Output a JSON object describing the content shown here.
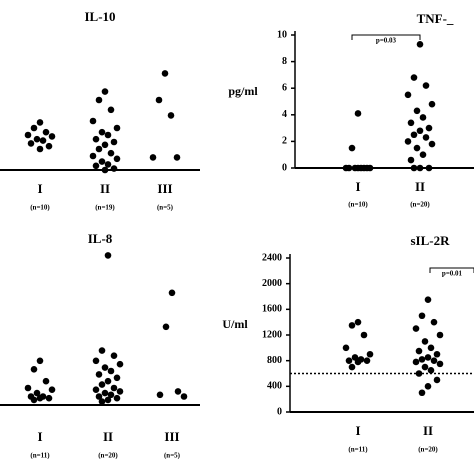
{
  "chart_data": [
    {
      "type": "dot",
      "title": "IL-10",
      "categories": [
        "I",
        "II",
        "III"
      ],
      "n_labels": [
        "(n=10)",
        "(n=19)",
        "(n=5)"
      ],
      "ylim": [
        0,
        100
      ],
      "values": [
        [
          34,
          30,
          27,
          25,
          24,
          22,
          21,
          19,
          17,
          15
        ],
        [
          56,
          50,
          43,
          35,
          30,
          27,
          25,
          22,
          20,
          18,
          15,
          12,
          10,
          8,
          6,
          4,
          3,
          1,
          0
        ],
        [
          69,
          50,
          39,
          9,
          9
        ]
      ]
    },
    {
      "type": "dot",
      "title": "TNF-_",
      "y_label": "pg/ml",
      "annotation": "p=0.03",
      "categories": [
        "I",
        "II"
      ],
      "n_labels": [
        "(n=10)",
        "(n=20)"
      ],
      "ylim": [
        0,
        10
      ],
      "yticks": [
        0,
        2,
        4,
        6,
        8,
        10
      ],
      "values": [
        [
          4.1,
          1.5,
          0,
          0,
          0,
          0,
          0,
          0,
          0,
          0
        ],
        [
          9.3,
          6.8,
          6.2,
          5.5,
          4.8,
          4.3,
          3.8,
          3.4,
          3.0,
          2.8,
          2.5,
          2.3,
          2.0,
          1.8,
          1.5,
          1.0,
          0.6,
          0,
          0,
          0
        ]
      ]
    },
    {
      "type": "dot",
      "title": "IL-8",
      "categories": [
        "I",
        "II",
        "III"
      ],
      "n_labels": [
        "(n=11)",
        "(n=20)",
        "(n=5)"
      ],
      "ylim": [
        0,
        100
      ],
      "values": [
        [
          26,
          21,
          14,
          10,
          9,
          7,
          5,
          5,
          4,
          4,
          3
        ],
        [
          88,
          32,
          29,
          26,
          24,
          22,
          20,
          18,
          16,
          14,
          12,
          10,
          9,
          8,
          7,
          6,
          5,
          4,
          3,
          2
        ],
        [
          66,
          46,
          8,
          6,
          5
        ]
      ]
    },
    {
      "type": "dot",
      "title": "sIL-2R",
      "y_label": "U/ml",
      "annotation": "p=0.01",
      "categories": [
        "I",
        "II"
      ],
      "n_labels": [
        "(n=11)",
        "(n=20)"
      ],
      "ylim": [
        0,
        2400
      ],
      "yticks": [
        0,
        400,
        800,
        1200,
        1600,
        2000,
        2400
      ],
      "reference_line": 600,
      "values": [
        [
          1400,
          1350,
          1200,
          1000,
          900,
          850,
          820,
          800,
          800,
          780,
          700
        ],
        [
          1750,
          1500,
          1400,
          1300,
          1200,
          1100,
          1000,
          950,
          900,
          850,
          820,
          800,
          780,
          750,
          700,
          650,
          600,
          500,
          400,
          300
        ]
      ]
    }
  ]
}
